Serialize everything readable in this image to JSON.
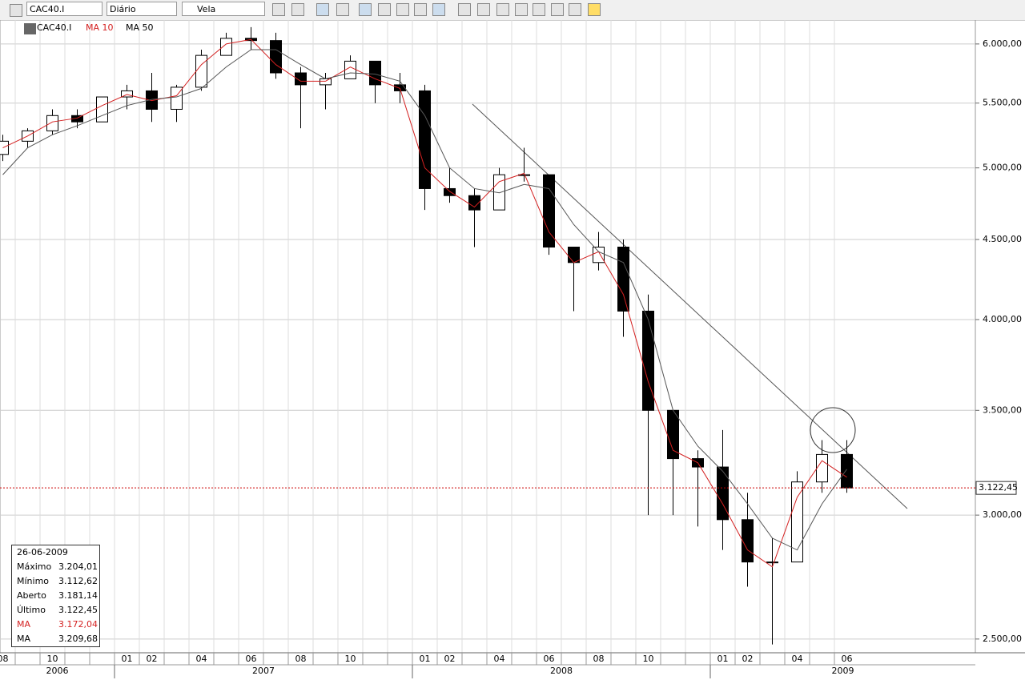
{
  "toolbar": {
    "symbol": "CAC40.I",
    "period": "Diário",
    "style": "Vela"
  },
  "legend": {
    "symbol": "CAC40.I",
    "ma_short": "MA 10",
    "ma_long": "MA 50"
  },
  "chart_data": {
    "type": "candlestick",
    "x": [
      "2006-08",
      "2006-09",
      "2006-10",
      "2006-11",
      "2006-12",
      "2007-01",
      "2007-02",
      "2007-03",
      "2007-04",
      "2007-05",
      "2007-06",
      "2007-07",
      "2007-08",
      "2007-09",
      "2007-10",
      "2007-11",
      "2007-12",
      "2008-01",
      "2008-02",
      "2008-03",
      "2008-04",
      "2008-05",
      "2008-06",
      "2008-07",
      "2008-08",
      "2008-09",
      "2008-10",
      "2008-11",
      "2008-12",
      "2009-01",
      "2009-02",
      "2009-03",
      "2009-04",
      "2009-05",
      "2009-06"
    ],
    "open": [
      5100,
      5200,
      5280,
      5400,
      5350,
      5550,
      5600,
      5450,
      5630,
      5900,
      6050,
      6030,
      5750,
      5650,
      5700,
      5850,
      5650,
      5600,
      4850,
      4800,
      4700,
      4950,
      4950,
      4450,
      4350,
      4450,
      4050,
      3500,
      3260,
      3220,
      2980,
      2800,
      2800,
      3150,
      3280
    ],
    "high": [
      5250,
      5300,
      5450,
      5450,
      5550,
      5650,
      5750,
      5650,
      5950,
      6100,
      6150,
      6100,
      5800,
      5750,
      5900,
      5850,
      5750,
      5650,
      5000,
      4850,
      5000,
      5150,
      4950,
      4450,
      4550,
      4500,
      4150,
      3500,
      3300,
      3400,
      3100,
      2900,
      3200,
      3350,
      3350
    ],
    "low": [
      5050,
      5150,
      5250,
      5300,
      5350,
      5450,
      5350,
      5350,
      5600,
      5900,
      5950,
      5700,
      5300,
      5450,
      5700,
      5500,
      5500,
      4700,
      4750,
      4450,
      4700,
      4900,
      4400,
      4050,
      4300,
      3900,
      3000,
      3000,
      2950,
      2850,
      2700,
      2480,
      2800,
      3100,
      3100
    ],
    "close": [
      5200,
      5280,
      5400,
      5350,
      5550,
      5600,
      5450,
      5630,
      5900,
      6050,
      6030,
      5750,
      5650,
      5700,
      5850,
      5650,
      5600,
      4850,
      4800,
      4700,
      4950,
      4950,
      4450,
      4350,
      4450,
      4050,
      3500,
      3260,
      3220,
      2980,
      2800,
      2800,
      3150,
      3280,
      3122.45
    ],
    "series": [
      {
        "name": "MA 10",
        "color": "#d42020",
        "values": [
          5150,
          5240,
          5350,
          5380,
          5480,
          5570,
          5520,
          5560,
          5820,
          6000,
          6040,
          5820,
          5680,
          5680,
          5800,
          5700,
          5620,
          5000,
          4830,
          4720,
          4900,
          4960,
          4550,
          4350,
          4420,
          4150,
          3650,
          3300,
          3240,
          3050,
          2850,
          2780,
          3080,
          3250,
          3172.04
        ]
      },
      {
        "name": "MA 50",
        "color": "#555555",
        "values": [
          4950,
          5150,
          5250,
          5320,
          5400,
          5480,
          5530,
          5550,
          5620,
          5800,
          5950,
          5950,
          5820,
          5700,
          5750,
          5740,
          5680,
          5400,
          5000,
          4850,
          4820,
          4880,
          4850,
          4600,
          4420,
          4350,
          4000,
          3500,
          3320,
          3200,
          3050,
          2900,
          2850,
          3050,
          3209.68
        ]
      }
    ],
    "ylim": [
      2450,
      6215
    ],
    "log_scale": true,
    "grid": true,
    "yticks": [
      {
        "value": 2500,
        "label": "2.500,00"
      },
      {
        "value": 3000,
        "label": "3.000,00"
      },
      {
        "value": 3500,
        "label": "3.500,00"
      },
      {
        "value": 4000,
        "label": "4.000,00"
      },
      {
        "value": 4500,
        "label": "4.500,00"
      },
      {
        "value": 5000,
        "label": "5.000,00"
      },
      {
        "value": 5500,
        "label": "5.500,00"
      },
      {
        "value": 6000,
        "label": "6.000,00"
      }
    ],
    "xticks": [
      {
        "value": "2006-08",
        "label": "08"
      },
      {
        "value": "2006-10",
        "label": "10"
      },
      {
        "value": "2007-01",
        "label": "01"
      },
      {
        "value": "2007-02",
        "label": "02"
      },
      {
        "value": "2007-04",
        "label": "04"
      },
      {
        "value": "2007-06",
        "label": "06"
      },
      {
        "value": "2007-08",
        "label": "08"
      },
      {
        "value": "2007-10",
        "label": "10"
      },
      {
        "value": "2008-01",
        "label": "01"
      },
      {
        "value": "2008-02",
        "label": "02"
      },
      {
        "value": "2008-04",
        "label": "04"
      },
      {
        "value": "2008-06",
        "label": "06"
      },
      {
        "value": "2008-08",
        "label": "08"
      },
      {
        "value": "2008-10",
        "label": "10"
      },
      {
        "value": "2009-01",
        "label": "01"
      },
      {
        "value": "2009-02",
        "label": "02"
      },
      {
        "value": "2009-04",
        "label": "04"
      },
      {
        "value": "2009-06",
        "label": "06"
      }
    ],
    "years": [
      "2006",
      "2007",
      "2008",
      "2009"
    ],
    "last_price": {
      "value": 3122.45,
      "label": "3.122,45"
    }
  },
  "info_box": {
    "date": "26-06-2009",
    "rows": [
      [
        "Máximo",
        "3.204,01"
      ],
      [
        "Mínimo",
        "3.112,62"
      ],
      [
        "Aberto",
        "3.181,14"
      ],
      [
        "Último",
        "3.122,45"
      ],
      [
        "MA",
        "3.172,04"
      ],
      [
        "MA",
        "3.209,68"
      ]
    ]
  }
}
